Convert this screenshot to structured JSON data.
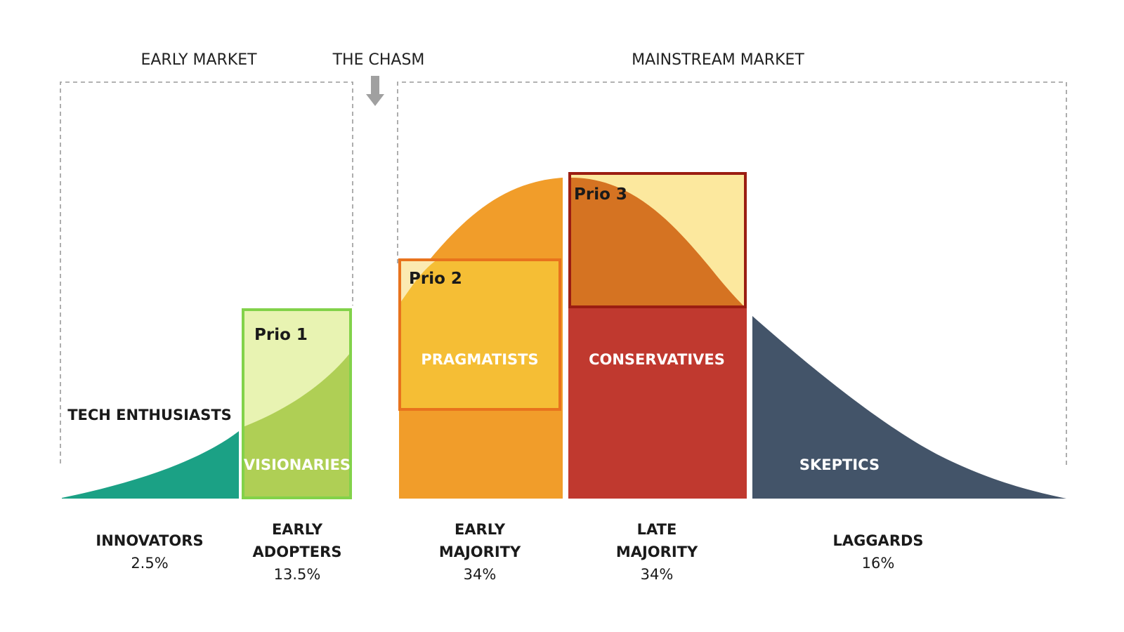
{
  "headers": {
    "early_market": "EARLY MARKET",
    "the_chasm": "THE CHASM",
    "mainstream_market": "MAINSTREAM MARKET"
  },
  "segments": [
    {
      "name": "INNOVATORS",
      "name_line2": "",
      "percent": "2.5%",
      "share": 2.5,
      "inner_label": "TECH ENTHUSIASTS",
      "color": "#1ba185"
    },
    {
      "name": "EARLY",
      "name_line2": "ADOPTERS",
      "percent": "13.5%",
      "share": 13.5,
      "inner_label": "VISIONARIES",
      "color": "#afcf55"
    },
    {
      "name": "EARLY",
      "name_line2": "MAJORITY",
      "percent": "34%",
      "share": 34,
      "inner_label": "PRAGMATISTS",
      "color": "#f19d2a"
    },
    {
      "name": "LATE",
      "name_line2": "MAJORITY",
      "percent": "34%",
      "share": 34,
      "inner_label": "CONSERVATIVES",
      "color": "#c0392f"
    },
    {
      "name": "LAGGARDS",
      "name_line2": "",
      "percent": "16%",
      "share": 16,
      "inner_label": "SKEPTICS",
      "color": "#435469"
    }
  ],
  "priorities": [
    {
      "label": "Prio 1",
      "border": "#82d24a",
      "fill": "#e8f3b2",
      "segment": "EARLY ADOPTERS"
    },
    {
      "label": "Prio 2",
      "border": "#e8731d",
      "fill": "#f5be35",
      "segment": "EARLY MAJORITY"
    },
    {
      "label": "Prio 3",
      "border": "#9b1d12",
      "fill": "#fce89e",
      "segment": "LATE MAJORITY"
    }
  ],
  "colors": {
    "arrow": "#a0a0a0",
    "dashed_border": "#999999",
    "prio3_curve_fill": "#d57322",
    "prio2_corner_fill": "#fbeab1"
  }
}
